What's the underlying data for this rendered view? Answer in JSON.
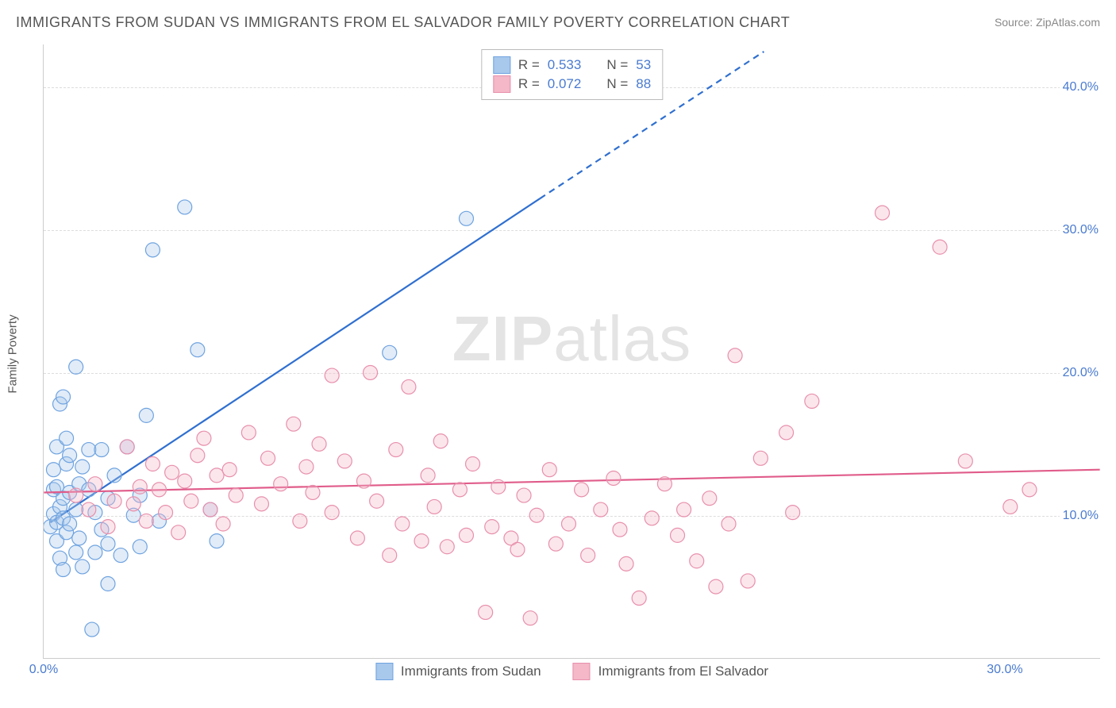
{
  "title": "IMMIGRANTS FROM SUDAN VS IMMIGRANTS FROM EL SALVADOR FAMILY POVERTY CORRELATION CHART",
  "source": "Source: ZipAtlas.com",
  "watermark": {
    "bold": "ZIP",
    "light": "atlas"
  },
  "ylabel": "Family Poverty",
  "chart": {
    "type": "scatter",
    "background_color": "#ffffff",
    "grid_color": "#dddddd",
    "axis_color": "#cccccc",
    "tick_color": "#4a7bd0",
    "font_family": "Arial",
    "title_fontsize": 18,
    "tick_fontsize": 16,
    "label_fontsize": 15,
    "xlim": [
      0,
      33
    ],
    "ylim": [
      0,
      43
    ],
    "yticks": [
      10,
      20,
      30,
      40
    ],
    "ytick_labels": [
      "10.0%",
      "20.0%",
      "30.0%",
      "40.0%"
    ],
    "xticks": [
      0,
      30
    ],
    "xtick_labels": [
      "0.0%",
      "30.0%"
    ],
    "marker_radius": 9,
    "marker_opacity": 0.35,
    "series": [
      {
        "name": "Immigrants from Sudan",
        "color_fill": "#a8c8ec",
        "color_stroke": "#6fa3e0",
        "r_label": "R =",
        "r_value": "0.533",
        "n_label": "N =",
        "n_value": "53",
        "trend": {
          "color": "#2f6fd0",
          "width": 2.2,
          "x1": 0.2,
          "y1": 9.5,
          "x2": 15.5,
          "y2": 32.2,
          "x3": 22.5,
          "y3": 42.5,
          "dash_after_x": 15.5
        },
        "points": [
          [
            0.2,
            9.2
          ],
          [
            0.3,
            10.1
          ],
          [
            0.3,
            11.8
          ],
          [
            0.3,
            13.2
          ],
          [
            0.4,
            8.2
          ],
          [
            0.4,
            9.5
          ],
          [
            0.4,
            12.0
          ],
          [
            0.4,
            14.8
          ],
          [
            0.5,
            7.0
          ],
          [
            0.5,
            10.6
          ],
          [
            0.5,
            17.8
          ],
          [
            0.6,
            6.2
          ],
          [
            0.6,
            9.8
          ],
          [
            0.6,
            11.2
          ],
          [
            0.6,
            18.3
          ],
          [
            0.7,
            8.8
          ],
          [
            0.7,
            13.6
          ],
          [
            0.7,
            15.4
          ],
          [
            0.8,
            9.4
          ],
          [
            0.8,
            11.6
          ],
          [
            0.8,
            14.2
          ],
          [
            1.0,
            7.4
          ],
          [
            1.0,
            10.4
          ],
          [
            1.0,
            20.4
          ],
          [
            1.1,
            8.4
          ],
          [
            1.1,
            12.2
          ],
          [
            1.2,
            6.4
          ],
          [
            1.2,
            13.4
          ],
          [
            1.4,
            11.8
          ],
          [
            1.4,
            14.6
          ],
          [
            1.5,
            2.0
          ],
          [
            1.6,
            7.4
          ],
          [
            1.6,
            10.2
          ],
          [
            1.8,
            9.0
          ],
          [
            1.8,
            14.6
          ],
          [
            2.0,
            5.2
          ],
          [
            2.0,
            8.0
          ],
          [
            2.0,
            11.2
          ],
          [
            2.2,
            12.8
          ],
          [
            2.4,
            7.2
          ],
          [
            2.6,
            14.8
          ],
          [
            2.8,
            10.0
          ],
          [
            3.0,
            7.8
          ],
          [
            3.0,
            11.4
          ],
          [
            3.2,
            17.0
          ],
          [
            3.4,
            28.6
          ],
          [
            3.6,
            9.6
          ],
          [
            4.4,
            31.6
          ],
          [
            4.8,
            21.6
          ],
          [
            5.2,
            10.4
          ],
          [
            5.4,
            8.2
          ],
          [
            10.8,
            21.4
          ],
          [
            13.2,
            30.8
          ]
        ]
      },
      {
        "name": "Immigrants from El Salvador",
        "color_fill": "#f4b8c8",
        "color_stroke": "#e890ac",
        "r_label": "R =",
        "r_value": "0.072",
        "n_label": "N =",
        "n_value": "88",
        "trend": {
          "color": "#e05c8a",
          "width": 2.2,
          "x1": 0,
          "y1": 11.6,
          "x2": 33,
          "y2": 13.2
        },
        "points": [
          [
            1.0,
            11.4
          ],
          [
            1.4,
            10.4
          ],
          [
            1.6,
            12.2
          ],
          [
            2.0,
            9.2
          ],
          [
            2.2,
            11.0
          ],
          [
            2.6,
            14.8
          ],
          [
            2.8,
            10.8
          ],
          [
            3.0,
            12.0
          ],
          [
            3.2,
            9.6
          ],
          [
            3.4,
            13.6
          ],
          [
            3.6,
            11.8
          ],
          [
            3.8,
            10.2
          ],
          [
            4.0,
            13.0
          ],
          [
            4.2,
            8.8
          ],
          [
            4.4,
            12.4
          ],
          [
            4.6,
            11.0
          ],
          [
            4.8,
            14.2
          ],
          [
            5.0,
            15.4
          ],
          [
            5.2,
            10.4
          ],
          [
            5.4,
            12.8
          ],
          [
            5.6,
            9.4
          ],
          [
            5.8,
            13.2
          ],
          [
            6.0,
            11.4
          ],
          [
            6.4,
            15.8
          ],
          [
            6.8,
            10.8
          ],
          [
            7.0,
            14.0
          ],
          [
            7.4,
            12.2
          ],
          [
            7.8,
            16.4
          ],
          [
            8.0,
            9.6
          ],
          [
            8.2,
            13.4
          ],
          [
            8.4,
            11.6
          ],
          [
            8.6,
            15.0
          ],
          [
            9.0,
            10.2
          ],
          [
            9.0,
            19.8
          ],
          [
            9.4,
            13.8
          ],
          [
            9.8,
            8.4
          ],
          [
            10.0,
            12.4
          ],
          [
            10.2,
            20.0
          ],
          [
            10.4,
            11.0
          ],
          [
            10.8,
            7.2
          ],
          [
            11.0,
            14.6
          ],
          [
            11.2,
            9.4
          ],
          [
            11.4,
            19.0
          ],
          [
            11.8,
            8.2
          ],
          [
            12.0,
            12.8
          ],
          [
            12.2,
            10.6
          ],
          [
            12.4,
            15.2
          ],
          [
            12.6,
            7.8
          ],
          [
            13.0,
            11.8
          ],
          [
            13.2,
            8.6
          ],
          [
            13.4,
            13.6
          ],
          [
            13.8,
            3.2
          ],
          [
            14.0,
            9.2
          ],
          [
            14.2,
            12.0
          ],
          [
            14.6,
            8.4
          ],
          [
            14.8,
            7.6
          ],
          [
            15.0,
            11.4
          ],
          [
            15.2,
            2.8
          ],
          [
            15.4,
            10.0
          ],
          [
            15.8,
            13.2
          ],
          [
            16.0,
            8.0
          ],
          [
            16.4,
            9.4
          ],
          [
            16.8,
            11.8
          ],
          [
            17.0,
            7.2
          ],
          [
            17.4,
            10.4
          ],
          [
            17.8,
            12.6
          ],
          [
            18.0,
            9.0
          ],
          [
            18.2,
            6.6
          ],
          [
            18.6,
            4.2
          ],
          [
            19.0,
            9.8
          ],
          [
            19.4,
            12.2
          ],
          [
            19.8,
            8.6
          ],
          [
            20.0,
            10.4
          ],
          [
            20.4,
            6.8
          ],
          [
            20.8,
            11.2
          ],
          [
            21.0,
            5.0
          ],
          [
            21.4,
            9.4
          ],
          [
            21.6,
            21.2
          ],
          [
            22.0,
            5.4
          ],
          [
            22.4,
            14.0
          ],
          [
            23.2,
            15.8
          ],
          [
            23.4,
            10.2
          ],
          [
            24.0,
            18.0
          ],
          [
            26.2,
            31.2
          ],
          [
            28.0,
            28.8
          ],
          [
            28.8,
            13.8
          ],
          [
            30.2,
            10.6
          ],
          [
            30.8,
            11.8
          ]
        ]
      }
    ]
  },
  "legend_top": [
    {
      "swatch_fill": "#a8c8ec",
      "swatch_stroke": "#6fa3e0"
    },
    {
      "swatch_fill": "#f4b8c8",
      "swatch_stroke": "#e890ac"
    }
  ],
  "legend_bottom": [
    {
      "swatch_fill": "#a8c8ec",
      "swatch_stroke": "#6fa3e0",
      "label": "Immigrants from Sudan"
    },
    {
      "swatch_fill": "#f4b8c8",
      "swatch_stroke": "#e890ac",
      "label": "Immigrants from El Salvador"
    }
  ]
}
